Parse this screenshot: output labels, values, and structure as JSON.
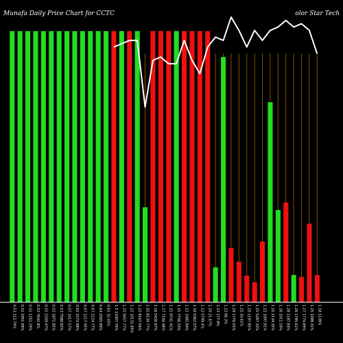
{
  "title": {
    "left": "Munafa Daily Price Chart for CCTC",
    "right": "olor Star Tech"
  },
  "chart_data": {
    "type": "bar",
    "grid": true,
    "categories": [
      "0.53 152.79%",
      "0.51 1951.99%",
      "0.51 1252.29%",
      "0.52 7642.8%",
      "0.51 2209.47%",
      "0.52 1871.85%",
      "0.53 7586.82%",
      "0.57 1017.57%",
      "0.61 1573.98%",
      "0.67 1217.45%",
      "0.67 1224.77%",
      "0.64 2565.89%",
      "0.61 32.45%",
      "1.2 11067.76%",
      "1.21 5657.77%",
      "1.22 10131.69%",
      "1.22 8167.56%",
      "1.02 8139.77%",
      "1.16 5426.97%",
      "1.17 7106.48%",
      "1.15 9741.41%",
      "1.15 7706.33%",
      "1.22 1085.94%",
      "1.16 5362.07%",
      "1.12 5799.4%",
      "1.20 21.67%",
      "1.23 177.8%",
      "1.22 66.3%",
      "1.29 1776.55%",
      "1.25 10.61%",
      "1.20 1197.85%",
      "1.25 5287.33%",
      "1.22 1097.91%",
      "1.25 2134.35%",
      "1.26 2011.59%",
      "1.28 1187.84%",
      "1.26 1795.61%",
      "1.27 1774.89%",
      "1.25 1098.31%",
      "1.18 1138%"
    ],
    "values": [
      40.37,
      40.37,
      40.37,
      40.37,
      40.37,
      40.37,
      40.37,
      40.37,
      40.37,
      40.37,
      40.37,
      40.37,
      40.37,
      40.37,
      40.37,
      40.37,
      40.37,
      14.1,
      40.37,
      40.37,
      40.37,
      40.37,
      40.37,
      40.37,
      40.37,
      40.37,
      5.14,
      36.5,
      8.02,
      5.98,
      3.91,
      2.91,
      8.99,
      29.76,
      13.69,
      14.8,
      4.01,
      3.72,
      11.66,
      3.99
    ],
    "colors": [
      "green",
      "green",
      "green",
      "green",
      "green",
      "green",
      "green",
      "green",
      "green",
      "green",
      "green",
      "green",
      "green",
      "red",
      "green",
      "red",
      "green",
      "green",
      "red",
      "red",
      "red",
      "green",
      "red",
      "red",
      "red",
      "red",
      "green",
      "green",
      "red",
      "red",
      "red",
      "red",
      "red",
      "green",
      "green",
      "red",
      "green",
      "red",
      "red",
      "red"
    ],
    "price_line": [
      null,
      null,
      null,
      null,
      null,
      null,
      null,
      null,
      null,
      null,
      null,
      null,
      null,
      1.2,
      1.21,
      1.22,
      1.22,
      1.02,
      1.16,
      1.17,
      1.15,
      1.15,
      1.22,
      1.16,
      1.12,
      1.2,
      1.23,
      1.22,
      1.29,
      1.25,
      1.2,
      1.25,
      1.22,
      1.25,
      1.26,
      1.28,
      1.26,
      1.27,
      1.25,
      1.18
    ],
    "ylim": [
      0,
      45
    ],
    "price_ylim": [
      0.95,
      1.3
    ],
    "palette": {
      "green": "#22dd22",
      "red": "#ee1111",
      "grid": "#8a5200",
      "line": "#ffffff"
    }
  }
}
